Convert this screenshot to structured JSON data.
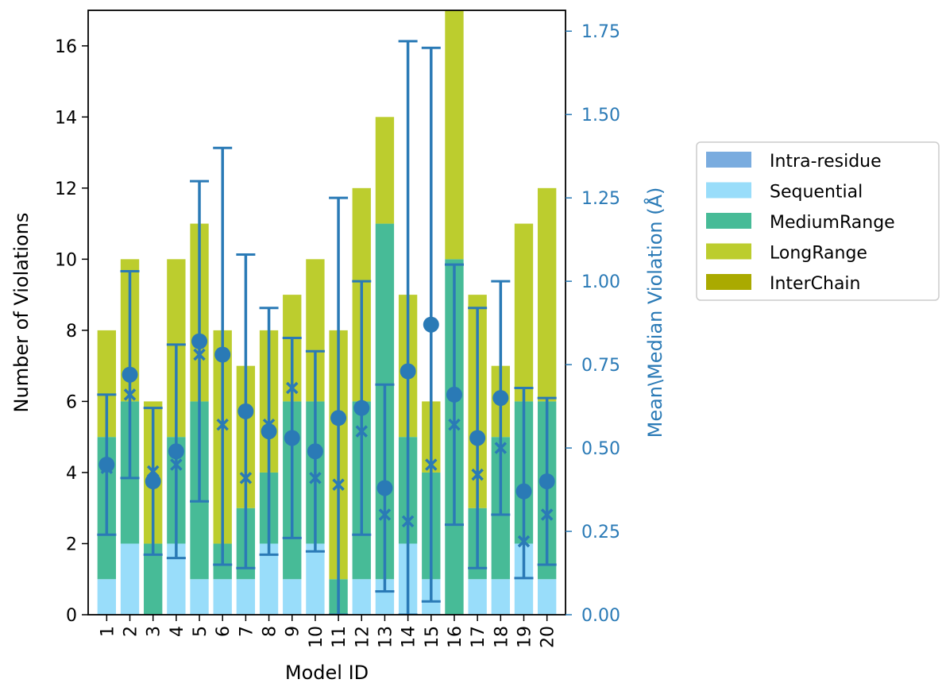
{
  "chart_data": {
    "type": "bar",
    "stacked": true,
    "xlabel": "Model ID",
    "ylabel": "Number of Violations",
    "y2label": "Mean\\Median Violation (Å)",
    "categories": [
      "1",
      "2",
      "3",
      "4",
      "5",
      "6",
      "7",
      "8",
      "9",
      "10",
      "11",
      "12",
      "13",
      "14",
      "15",
      "16",
      "17",
      "18",
      "19",
      "20"
    ],
    "ylim": [
      0,
      17
    ],
    "yticks": [
      0,
      2,
      4,
      6,
      8,
      10,
      12,
      14,
      16
    ],
    "y2lim": [
      0,
      1.8125
    ],
    "y2ticks": [
      "0.00",
      "0.25",
      "0.50",
      "0.75",
      "1.00",
      "1.25",
      "1.50",
      "1.75"
    ],
    "legend_position": "right",
    "series": [
      {
        "name": "Intra-residue",
        "color": "#7aacdf",
        "values": [
          0,
          0,
          0,
          0,
          0,
          0,
          0,
          0,
          0,
          0,
          0,
          0,
          0,
          0,
          0,
          0,
          0,
          0,
          0,
          0
        ]
      },
      {
        "name": "Sequential",
        "color": "#99ddfa",
        "values": [
          1,
          2,
          0,
          2,
          1,
          1,
          1,
          2,
          1,
          2,
          0,
          1,
          1,
          2,
          1,
          0,
          1,
          1,
          2,
          1
        ]
      },
      {
        "name": "MediumRange",
        "color": "#47bb97",
        "values": [
          4,
          4,
          2,
          3,
          5,
          1,
          2,
          2,
          5,
          4,
          1,
          5,
          10,
          3,
          3,
          10,
          2,
          4,
          4,
          5
        ]
      },
      {
        "name": "LongRange",
        "color": "#bccd2e",
        "values": [
          3,
          4,
          4,
          5,
          5,
          6,
          4,
          4,
          3,
          4,
          7,
          6,
          3,
          4,
          2,
          7,
          6,
          2,
          5,
          6
        ]
      },
      {
        "name": "InterChain",
        "color": "#aaaa00",
        "values": [
          0,
          0,
          0,
          0,
          0,
          0,
          0,
          0,
          0,
          0,
          0,
          0,
          0,
          0,
          0,
          0,
          0,
          0,
          0,
          0
        ]
      }
    ],
    "violation_color": "#2a7ab6",
    "mean_violation": [
      0.45,
      0.72,
      0.4,
      0.49,
      0.82,
      0.78,
      0.61,
      0.55,
      0.53,
      0.49,
      0.59,
      0.62,
      0.38,
      0.73,
      0.87,
      0.66,
      0.53,
      0.65,
      0.37,
      0.4
    ],
    "median_violation": [
      0.44,
      0.66,
      0.43,
      0.45,
      0.78,
      0.57,
      0.41,
      0.57,
      0.68,
      0.41,
      0.39,
      0.55,
      0.3,
      0.28,
      0.45,
      0.57,
      0.42,
      0.5,
      0.22,
      0.3
    ],
    "violation_error_low": [
      0.24,
      0.41,
      0.18,
      0.17,
      0.34,
      0.15,
      0.14,
      0.18,
      0.23,
      0.19,
      0.0,
      0.24,
      0.07,
      0.0,
      0.04,
      0.27,
      0.14,
      0.3,
      0.11,
      0.15
    ],
    "violation_error_high": [
      0.66,
      1.03,
      0.62,
      0.81,
      1.3,
      1.4,
      1.08,
      0.92,
      0.83,
      0.79,
      1.25,
      1.0,
      0.69,
      1.72,
      1.7,
      1.05,
      0.92,
      1.0,
      0.68,
      0.65
    ]
  }
}
